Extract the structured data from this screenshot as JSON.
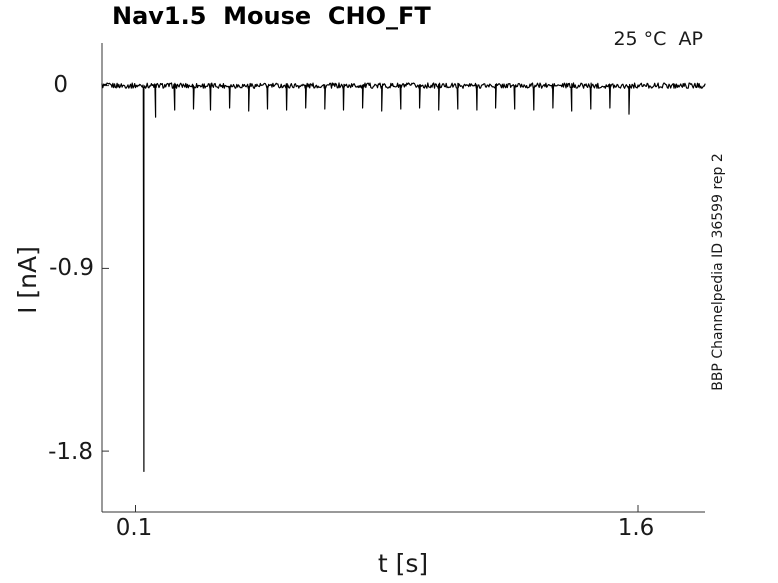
{
  "chart_data": {
    "type": "line",
    "title": "Nav1.5  Mouse  CHO_FT",
    "annotation": "25 °C  AP",
    "watermark": "BBP Channelpedia ID 36599 rep 2",
    "xlabel": "t [s]",
    "ylabel": "I [nA]",
    "xlim": [
      0,
      1.8
    ],
    "ylim": [
      -2.1,
      0.21
    ],
    "grid": false,
    "legend": null,
    "line_color": "#000000",
    "background_color": "#ffffff",
    "axis_color": "#333333",
    "xticks": [
      {
        "value": 0.1,
        "label": "0.1"
      },
      {
        "value": 1.6,
        "label": "1.6"
      }
    ],
    "yticks": [
      {
        "value": 0,
        "label": "0"
      },
      {
        "value": -0.9,
        "label": "-0.9"
      },
      {
        "value": -1.8,
        "label": "-1.8"
      }
    ],
    "baseline_nA": 0,
    "noise_amplitude_nA": 0.013,
    "trace": {
      "description": "Flat noisy baseline at 0 nA with brief downward current spikes; one large spike (-1.9 nA) then a train of small spikes (~-0.12 nA) every ~0.057 s until ~1.57 s",
      "t_start": 0,
      "t_end": 1.8,
      "spikes": [
        [
          0.125,
          -1.9
        ],
        [
          0.16,
          -0.155
        ],
        [
          0.217,
          -0.12
        ],
        [
          0.273,
          -0.115
        ],
        [
          0.324,
          -0.12
        ],
        [
          0.381,
          -0.11
        ],
        [
          0.438,
          -0.125
        ],
        [
          0.494,
          -0.115
        ],
        [
          0.551,
          -0.12
        ],
        [
          0.608,
          -0.11
        ],
        [
          0.665,
          -0.115
        ],
        [
          0.721,
          -0.12
        ],
        [
          0.778,
          -0.11
        ],
        [
          0.835,
          -0.125
        ],
        [
          0.892,
          -0.115
        ],
        [
          0.948,
          -0.11
        ],
        [
          1.005,
          -0.12
        ],
        [
          1.062,
          -0.115
        ],
        [
          1.119,
          -0.12
        ],
        [
          1.175,
          -0.11
        ],
        [
          1.232,
          -0.115
        ],
        [
          1.289,
          -0.12
        ],
        [
          1.346,
          -0.11
        ],
        [
          1.402,
          -0.125
        ],
        [
          1.459,
          -0.115
        ],
        [
          1.516,
          -0.11
        ],
        [
          1.573,
          -0.14
        ]
      ]
    }
  }
}
